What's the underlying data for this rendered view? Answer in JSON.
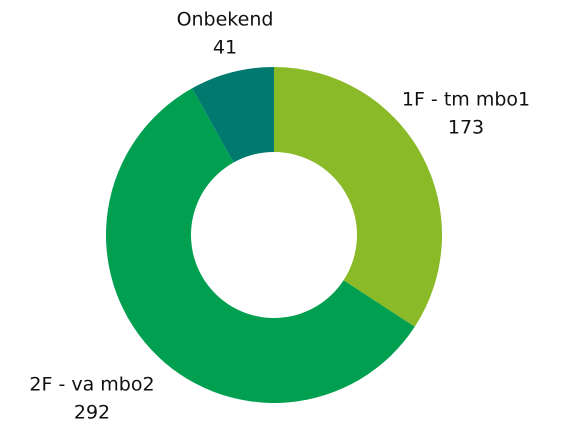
{
  "chart_data": {
    "type": "donut",
    "categories": [
      "1F - tm mbo1",
      "2F - va mbo2",
      "Onbekend"
    ],
    "values": [
      173,
      292,
      41
    ],
    "colors": [
      "#8aba27",
      "#00a050",
      "#007a6e"
    ]
  }
}
